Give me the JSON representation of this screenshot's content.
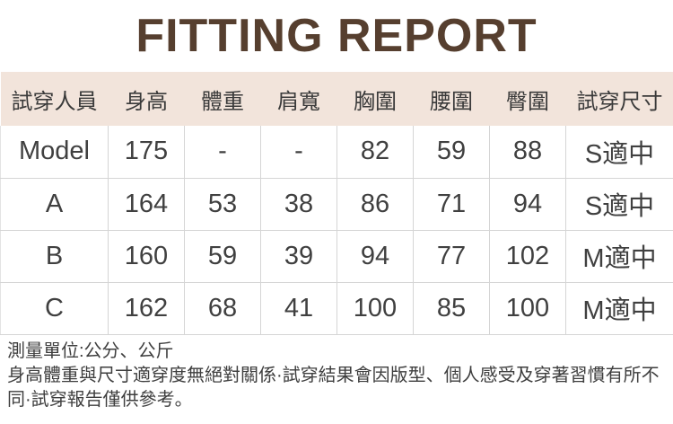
{
  "title": "FITTING REPORT",
  "colors": {
    "title": "#563f2f",
    "header_bg": "#f2e4db",
    "header_text": "#3a3a3a",
    "cell_text": "#404040",
    "border": "#d5d5d5",
    "note_text": "#3e3e3e"
  },
  "table": {
    "headers": [
      "試穿人員",
      "身高",
      "體重",
      "肩寬",
      "胸圍",
      "腰圍",
      "臀圍",
      "試穿尺寸"
    ],
    "rows": [
      [
        "Model",
        "175",
        "-",
        "-",
        "82",
        "59",
        "88",
        "S適中"
      ],
      [
        "A",
        "164",
        "53",
        "38",
        "86",
        "71",
        "94",
        "S適中"
      ],
      [
        "B",
        "160",
        "59",
        "39",
        "94",
        "77",
        "102",
        "M適中"
      ],
      [
        "C",
        "162",
        "68",
        "41",
        "100",
        "85",
        "100",
        "M適中"
      ]
    ]
  },
  "notes": {
    "units": "測量單位:公分、公斤",
    "disclaimer": "身高體重與尺寸適穿度無絕對關係·試穿結果會因版型、個人感受及穿著習慣有所不同·試穿報告僅供參考。"
  }
}
